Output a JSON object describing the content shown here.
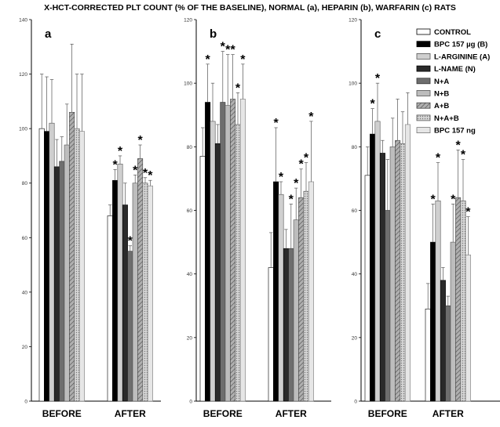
{
  "title": "X-HCT-CORRECTED PLT COUNT (% OF THE BASELINE), NORMAL (a), HEPARIN  (b), WARFARIN (c) RATS",
  "chart_data": [
    {
      "type": "bar",
      "panel_label": "a",
      "categories": [
        "BEFORE",
        "AFTER"
      ],
      "ylim": [
        0,
        140
      ],
      "yticks": [
        0,
        20,
        40,
        60,
        80,
        100,
        120,
        140
      ],
      "series": [
        {
          "name": "CONTROL",
          "values": [
            100,
            68
          ],
          "errors": [
            20,
            4
          ],
          "stars": [
            false,
            false
          ]
        },
        {
          "name": "BPC 157 µg (B)",
          "values": [
            99,
            81
          ],
          "errors": [
            20,
            4
          ],
          "stars": [
            false,
            true
          ]
        },
        {
          "name": "L-ARGININE (A)",
          "values": [
            102,
            87
          ],
          "errors": [
            16,
            3
          ],
          "stars": [
            false,
            true
          ]
        },
        {
          "name": "L-NAME (N)",
          "values": [
            86,
            72
          ],
          "errors": [
            10,
            8
          ],
          "stars": [
            false,
            false
          ]
        },
        {
          "name": "N+A",
          "values": [
            88,
            55
          ],
          "errors": [
            9,
            2
          ],
          "stars": [
            false,
            true
          ]
        },
        {
          "name": "N+B",
          "values": [
            94,
            80
          ],
          "errors": [
            15,
            3
          ],
          "stars": [
            false,
            true
          ]
        },
        {
          "name": "A+B",
          "values": [
            106,
            89
          ],
          "errors": [
            25,
            5
          ],
          "stars": [
            false,
            true
          ]
        },
        {
          "name": "N+A+B",
          "values": [
            100,
            80
          ],
          "errors": [
            20,
            2
          ],
          "stars": [
            false,
            true
          ]
        },
        {
          "name": "BPC 157 ng",
          "values": [
            99,
            79
          ],
          "errors": [
            21,
            2
          ],
          "stars": [
            false,
            true
          ]
        }
      ]
    },
    {
      "type": "bar",
      "panel_label": "b",
      "categories": [
        "BEFORE",
        "AFTER"
      ],
      "ylim": [
        0,
        120
      ],
      "yticks": [
        0,
        20,
        40,
        60,
        80,
        100,
        120
      ],
      "series": [
        {
          "name": "CONTROL",
          "values": [
            77,
            42
          ],
          "errors": [
            9,
            11
          ],
          "stars": [
            false,
            false
          ]
        },
        {
          "name": "BPC 157 µg (B)",
          "values": [
            94,
            69
          ],
          "errors": [
            12,
            17
          ],
          "stars": [
            true,
            true
          ]
        },
        {
          "name": "L-ARGININE (A)",
          "values": [
            88,
            65
          ],
          "errors": [
            12,
            4
          ],
          "stars": [
            false,
            true
          ]
        },
        {
          "name": "L-NAME (N)",
          "values": [
            81,
            48
          ],
          "errors": [
            6,
            6
          ],
          "stars": [
            false,
            false
          ]
        },
        {
          "name": "N+A",
          "values": [
            94,
            48
          ],
          "errors": [
            16,
            14
          ],
          "stars": [
            true,
            true
          ]
        },
        {
          "name": "N+B",
          "values": [
            93,
            57
          ],
          "errors": [
            16,
            10
          ],
          "stars": [
            true,
            true
          ]
        },
        {
          "name": "A+B",
          "values": [
            95,
            64
          ],
          "errors": [
            14,
            9
          ],
          "stars": [
            true,
            true
          ]
        },
        {
          "name": "N+A+B",
          "values": [
            87,
            66
          ],
          "errors": [
            10,
            9
          ],
          "stars": [
            true,
            true
          ]
        },
        {
          "name": "BPC 157 ng",
          "values": [
            95,
            69
          ],
          "errors": [
            11,
            19
          ],
          "stars": [
            true,
            true
          ]
        }
      ]
    },
    {
      "type": "bar",
      "panel_label": "c",
      "categories": [
        "BEFORE",
        "AFTER"
      ],
      "ylim": [
        0,
        120
      ],
      "yticks": [
        0,
        20,
        40,
        60,
        80,
        100,
        120
      ],
      "series": [
        {
          "name": "CONTROL",
          "values": [
            71,
            29
          ],
          "errors": [
            9,
            8
          ],
          "stars": [
            false,
            false
          ]
        },
        {
          "name": "BPC 157 µg (B)",
          "values": [
            84,
            50
          ],
          "errors": [
            8,
            12
          ],
          "stars": [
            true,
            true
          ]
        },
        {
          "name": "L-ARGININE (A)",
          "values": [
            88,
            63
          ],
          "errors": [
            12,
            12
          ],
          "stars": [
            true,
            true
          ]
        },
        {
          "name": "L-NAME (N)",
          "values": [
            78,
            38
          ],
          "errors": [
            4,
            4
          ],
          "stars": [
            false,
            false
          ]
        },
        {
          "name": "N+A",
          "values": [
            60,
            30
          ],
          "errors": [
            16,
            3
          ],
          "stars": [
            false,
            false
          ]
        },
        {
          "name": "N+B",
          "values": [
            80,
            50
          ],
          "errors": [
            9,
            12
          ],
          "stars": [
            false,
            true
          ]
        },
        {
          "name": "A+B",
          "values": [
            82,
            64
          ],
          "errors": [
            13,
            15
          ],
          "stars": [
            false,
            true
          ]
        },
        {
          "name": "N+A+B",
          "values": [
            81,
            63
          ],
          "errors": [
            10,
            13
          ],
          "stars": [
            false,
            true
          ]
        },
        {
          "name": "BPC 157 ng",
          "values": [
            87,
            46
          ],
          "errors": [
            10,
            12
          ],
          "stars": [
            false,
            true
          ]
        }
      ]
    }
  ],
  "legend": [
    {
      "label": "CONTROL",
      "fill": "#ffffff",
      "stroke": "#000000"
    },
    {
      "label": "BPC 157 µg (B)",
      "fill": "#000000",
      "stroke": "#000000"
    },
    {
      "label": "L-ARGININE (A)",
      "fill": "#cfcfcf",
      "stroke": "#555555"
    },
    {
      "label": "L-NAME (N)",
      "fill": "#2a2a2a",
      "stroke": "#000000"
    },
    {
      "label": "N+A",
      "fill": "#6e6e6e",
      "stroke": "#333333"
    },
    {
      "label": "N+B",
      "fill": "#bdbdbd",
      "stroke": "#555555"
    },
    {
      "label": "A+B",
      "fill": "#9a9a9a",
      "stroke": "#444444"
    },
    {
      "label": "N+A+B",
      "fill": "#c4c4c4",
      "stroke": "#555555"
    },
    {
      "label": "BPC 157 ng",
      "fill": "#e6e6e6",
      "stroke": "#777777"
    }
  ]
}
